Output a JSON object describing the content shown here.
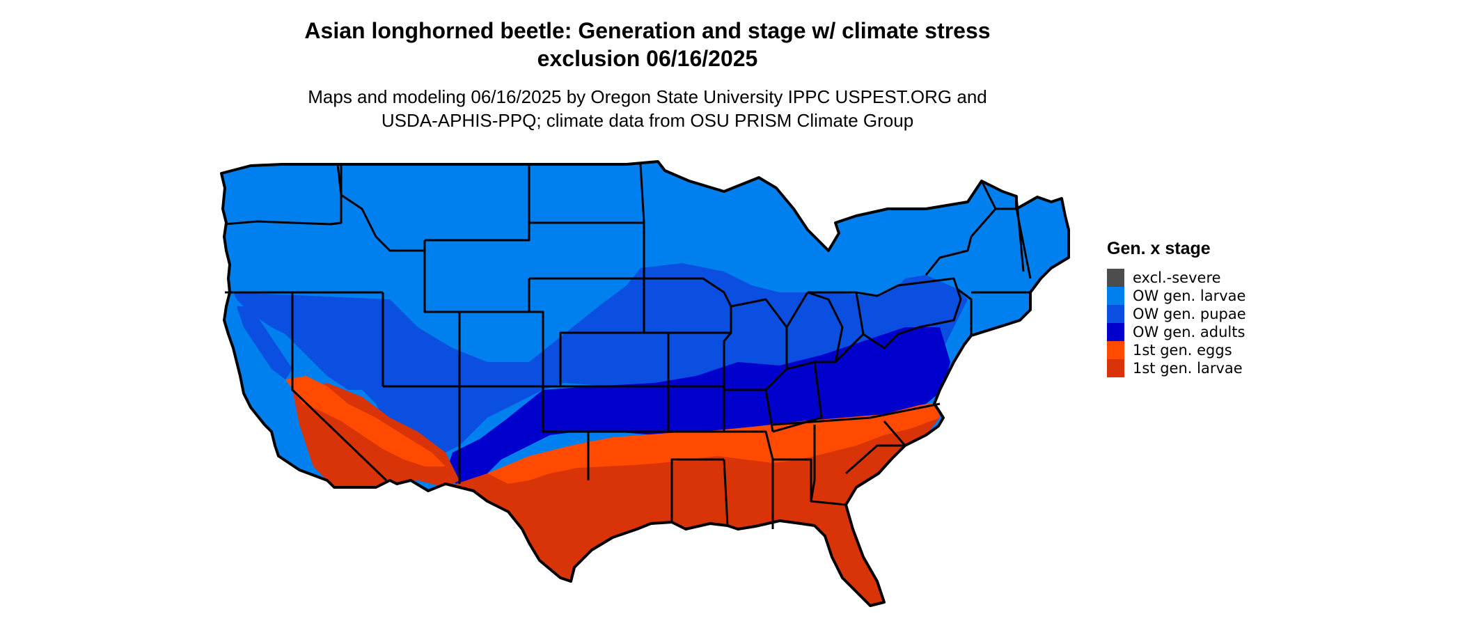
{
  "title": {
    "line1": "Asian longhorned beetle: Generation and stage w/ climate stress",
    "line2": "exclusion 06/16/2025"
  },
  "subtitle": {
    "line1": "Maps and modeling 06/16/2025 by Oregon State University IPPC USPEST.ORG and",
    "line2": "USDA-APHIS-PPQ; climate data from OSU PRISM Climate Group"
  },
  "legend": {
    "title": "Gen. x stage",
    "items": [
      {
        "label": "excl.-severe",
        "color": "#4d4d4d"
      },
      {
        "label": "OW gen. larvae",
        "color": "#0080ee"
      },
      {
        "label": "OW gen. pupae",
        "color": "#0a4fe0"
      },
      {
        "label": "OW gen. adults",
        "color": "#0000cc"
      },
      {
        "label": "1st gen. eggs",
        "color": "#ff4a00"
      },
      {
        "label": "1st gen. larvae",
        "color": "#d93408"
      }
    ]
  },
  "map": {
    "region": "Contiguous United States",
    "fill_zones": [
      "OW gen. larvae",
      "OW gen. pupae",
      "OW gen. adults",
      "1st gen. eggs",
      "1st gen. larvae"
    ]
  }
}
